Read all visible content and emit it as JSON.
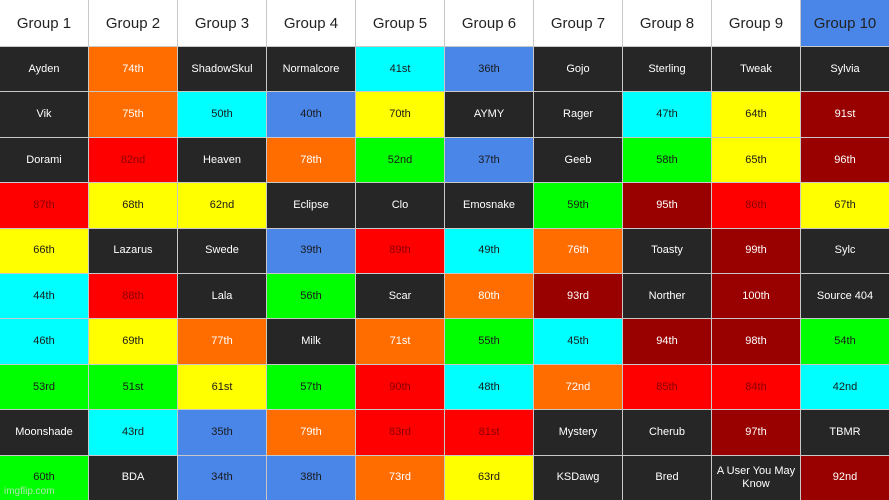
{
  "headers": [
    "Group 1",
    "Group 2",
    "Group 3",
    "Group 4",
    "Group 5",
    "Group 6",
    "Group 7",
    "Group 8",
    "Group 9",
    "Group 10"
  ],
  "highlighted_header_index": 9,
  "header_highlight_color": "#4a86e8",
  "colors": {
    "D": "#262626",
    "O": "#ff6d01",
    "C": "#00ffff",
    "B": "#4a86e8",
    "Y": "#ffff00",
    "R": "#ff0000",
    "G": "#00ff00",
    "M": "#990000"
  },
  "text_colors": {
    "D": "#ffffff",
    "O": "#ffffff",
    "C": "#1a1a1a",
    "B": "#1a1a1a",
    "Y": "#1a1a1a",
    "R": "#8b0000",
    "G": "#1a1a1a",
    "M": "#ffffff"
  },
  "rows": [
    [
      [
        "Ayden",
        "D"
      ],
      [
        "74th",
        "O"
      ],
      [
        "ShadowSkul",
        "D"
      ],
      [
        "Normalcore",
        "D"
      ],
      [
        "41st",
        "C"
      ],
      [
        "36th",
        "B"
      ],
      [
        "Gojo",
        "D"
      ],
      [
        "Sterling",
        "D"
      ],
      [
        "Tweak",
        "D"
      ],
      [
        "Sylvia",
        "D"
      ]
    ],
    [
      [
        "Vik",
        "D"
      ],
      [
        "75th",
        "O"
      ],
      [
        "50th",
        "C"
      ],
      [
        "40th",
        "B"
      ],
      [
        "70th",
        "Y"
      ],
      [
        "AYMY",
        "D"
      ],
      [
        "Rager",
        "D"
      ],
      [
        "47th",
        "C"
      ],
      [
        "64th",
        "Y"
      ],
      [
        "91st",
        "M"
      ]
    ],
    [
      [
        "Dorami",
        "D"
      ],
      [
        "82nd",
        "R"
      ],
      [
        "Heaven",
        "D"
      ],
      [
        "78th",
        "O"
      ],
      [
        "52nd",
        "G"
      ],
      [
        "37th",
        "B"
      ],
      [
        "Geeb",
        "D"
      ],
      [
        "58th",
        "G"
      ],
      [
        "65th",
        "Y"
      ],
      [
        "96th",
        "M"
      ]
    ],
    [
      [
        "87th",
        "R"
      ],
      [
        "68th",
        "Y"
      ],
      [
        "62nd",
        "Y"
      ],
      [
        "Eclipse",
        "D"
      ],
      [
        "Clo",
        "D"
      ],
      [
        "Emosnake",
        "D"
      ],
      [
        "59th",
        "G"
      ],
      [
        "95th",
        "M"
      ],
      [
        "86th",
        "R"
      ],
      [
        "67th",
        "Y"
      ]
    ],
    [
      [
        "66th",
        "Y"
      ],
      [
        "Lazarus",
        "D"
      ],
      [
        "Swede",
        "D"
      ],
      [
        "39th",
        "B"
      ],
      [
        "89th",
        "R"
      ],
      [
        "49th",
        "C"
      ],
      [
        "76th",
        "O"
      ],
      [
        "Toasty",
        "D"
      ],
      [
        "99th",
        "M"
      ],
      [
        "Sylc",
        "D"
      ]
    ],
    [
      [
        "44th",
        "C"
      ],
      [
        "88th",
        "R"
      ],
      [
        "Lala",
        "D"
      ],
      [
        "56th",
        "G"
      ],
      [
        "Scar",
        "D"
      ],
      [
        "80th",
        "O"
      ],
      [
        "93rd",
        "M"
      ],
      [
        "Norther",
        "D"
      ],
      [
        "100th",
        "M"
      ],
      [
        "Source 404",
        "D"
      ]
    ],
    [
      [
        "46th",
        "C"
      ],
      [
        "69th",
        "Y"
      ],
      [
        "77th",
        "O"
      ],
      [
        "Milk",
        "D"
      ],
      [
        "71st",
        "O"
      ],
      [
        "55th",
        "G"
      ],
      [
        "45th",
        "C"
      ],
      [
        "94th",
        "M"
      ],
      [
        "98th",
        "M"
      ],
      [
        "54th",
        "G"
      ]
    ],
    [
      [
        "53rd",
        "G"
      ],
      [
        "51st",
        "G"
      ],
      [
        "61st",
        "Y"
      ],
      [
        "57th",
        "G"
      ],
      [
        "90th",
        "R"
      ],
      [
        "48th",
        "C"
      ],
      [
        "72nd",
        "O"
      ],
      [
        "85th",
        "R"
      ],
      [
        "84th",
        "R"
      ],
      [
        "42nd",
        "C"
      ]
    ],
    [
      [
        "Moonshade",
        "D"
      ],
      [
        "43rd",
        "C"
      ],
      [
        "35th",
        "B"
      ],
      [
        "79th",
        "O"
      ],
      [
        "83rd",
        "R"
      ],
      [
        "81st",
        "R"
      ],
      [
        "Mystery",
        "D"
      ],
      [
        "Cherub",
        "D"
      ],
      [
        "97th",
        "M"
      ],
      [
        "TBMR",
        "D"
      ]
    ],
    [
      [
        "60th",
        "G"
      ],
      [
        "BDA",
        "D"
      ],
      [
        "34th",
        "B"
      ],
      [
        "38th",
        "B"
      ],
      [
        "73rd",
        "O"
      ],
      [
        "63rd",
        "Y"
      ],
      [
        "KSDawg",
        "D"
      ],
      [
        "Bred",
        "D"
      ],
      [
        "A User You May Know",
        "D"
      ],
      [
        "92nd",
        "M"
      ]
    ]
  ],
  "watermark": "imgflip.com"
}
